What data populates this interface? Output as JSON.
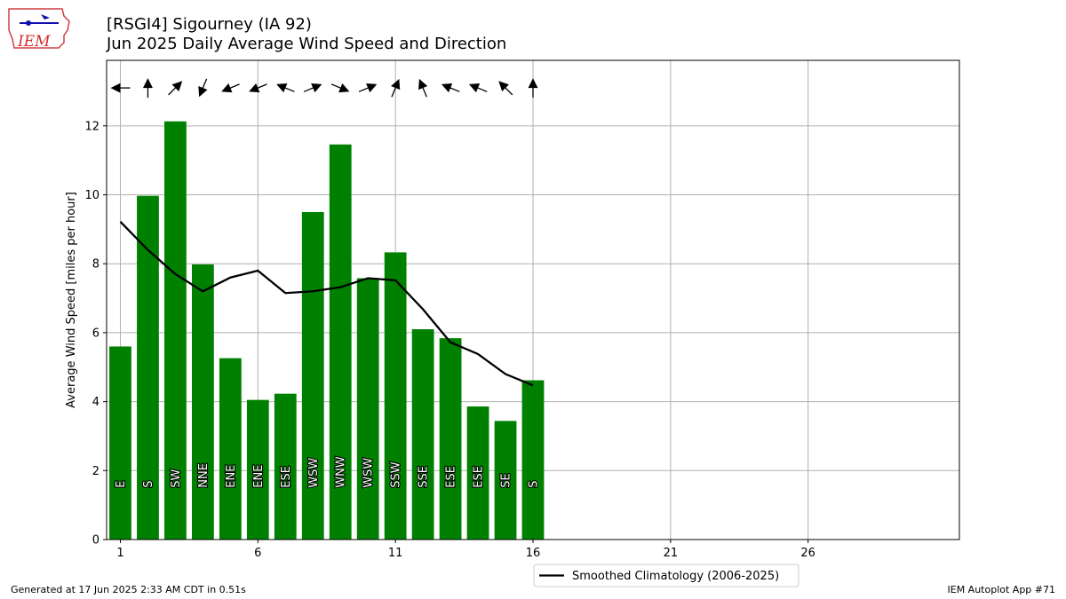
{
  "header": {
    "title_line1": "[RSGI4] Sigourney (IA 92)",
    "title_line2": "Jun 2025 Daily Average Wind Speed and Direction"
  },
  "logo": {
    "text": "IEM"
  },
  "footer": {
    "left": "Generated at 17 Jun 2025 2:33 AM CDT in 0.51s",
    "right": "IEM Autoplot App #71"
  },
  "colors": {
    "bar": "#008000",
    "climo": "#000000",
    "grid": "#b0b0b0"
  },
  "chart_data": {
    "type": "bar",
    "ylabel": "Average Wind Speed [miles per hour]",
    "xlim": [
      0.5,
      31.5
    ],
    "ylim": [
      0,
      13.9
    ],
    "xticks": [
      1,
      6,
      11,
      16,
      21,
      26
    ],
    "yticks": [
      0,
      2,
      4,
      6,
      8,
      10,
      12
    ],
    "grid": true,
    "legend_placement": "bottom-center",
    "days": [
      1,
      2,
      3,
      4,
      5,
      6,
      7,
      8,
      9,
      10,
      11,
      12,
      13,
      14,
      15,
      16
    ],
    "values": [
      5.6,
      9.97,
      12.13,
      7.98,
      5.26,
      4.05,
      4.23,
      9.5,
      11.46,
      7.58,
      8.33,
      6.1,
      5.84,
      3.86,
      3.44,
      4.62
    ],
    "directions": [
      "E",
      "S",
      "SW",
      "NNE",
      "ENE",
      "ENE",
      "ESE",
      "WSW",
      "WNW",
      "WSW",
      "SSW",
      "SSE",
      "ESE",
      "ESE",
      "SE",
      "S"
    ],
    "direction_degrees": [
      90,
      180,
      225,
      22.5,
      67.5,
      67.5,
      112.5,
      247.5,
      292.5,
      247.5,
      202.5,
      157.5,
      112.5,
      112.5,
      135,
      180
    ],
    "climatology": {
      "name": "Smoothed Climatology (2006-2025)",
      "values": [
        9.22,
        8.4,
        7.7,
        7.2,
        7.6,
        7.8,
        7.15,
        7.2,
        7.32,
        7.58,
        7.52,
        6.68,
        5.72,
        5.38,
        4.8,
        4.47
      ]
    }
  }
}
